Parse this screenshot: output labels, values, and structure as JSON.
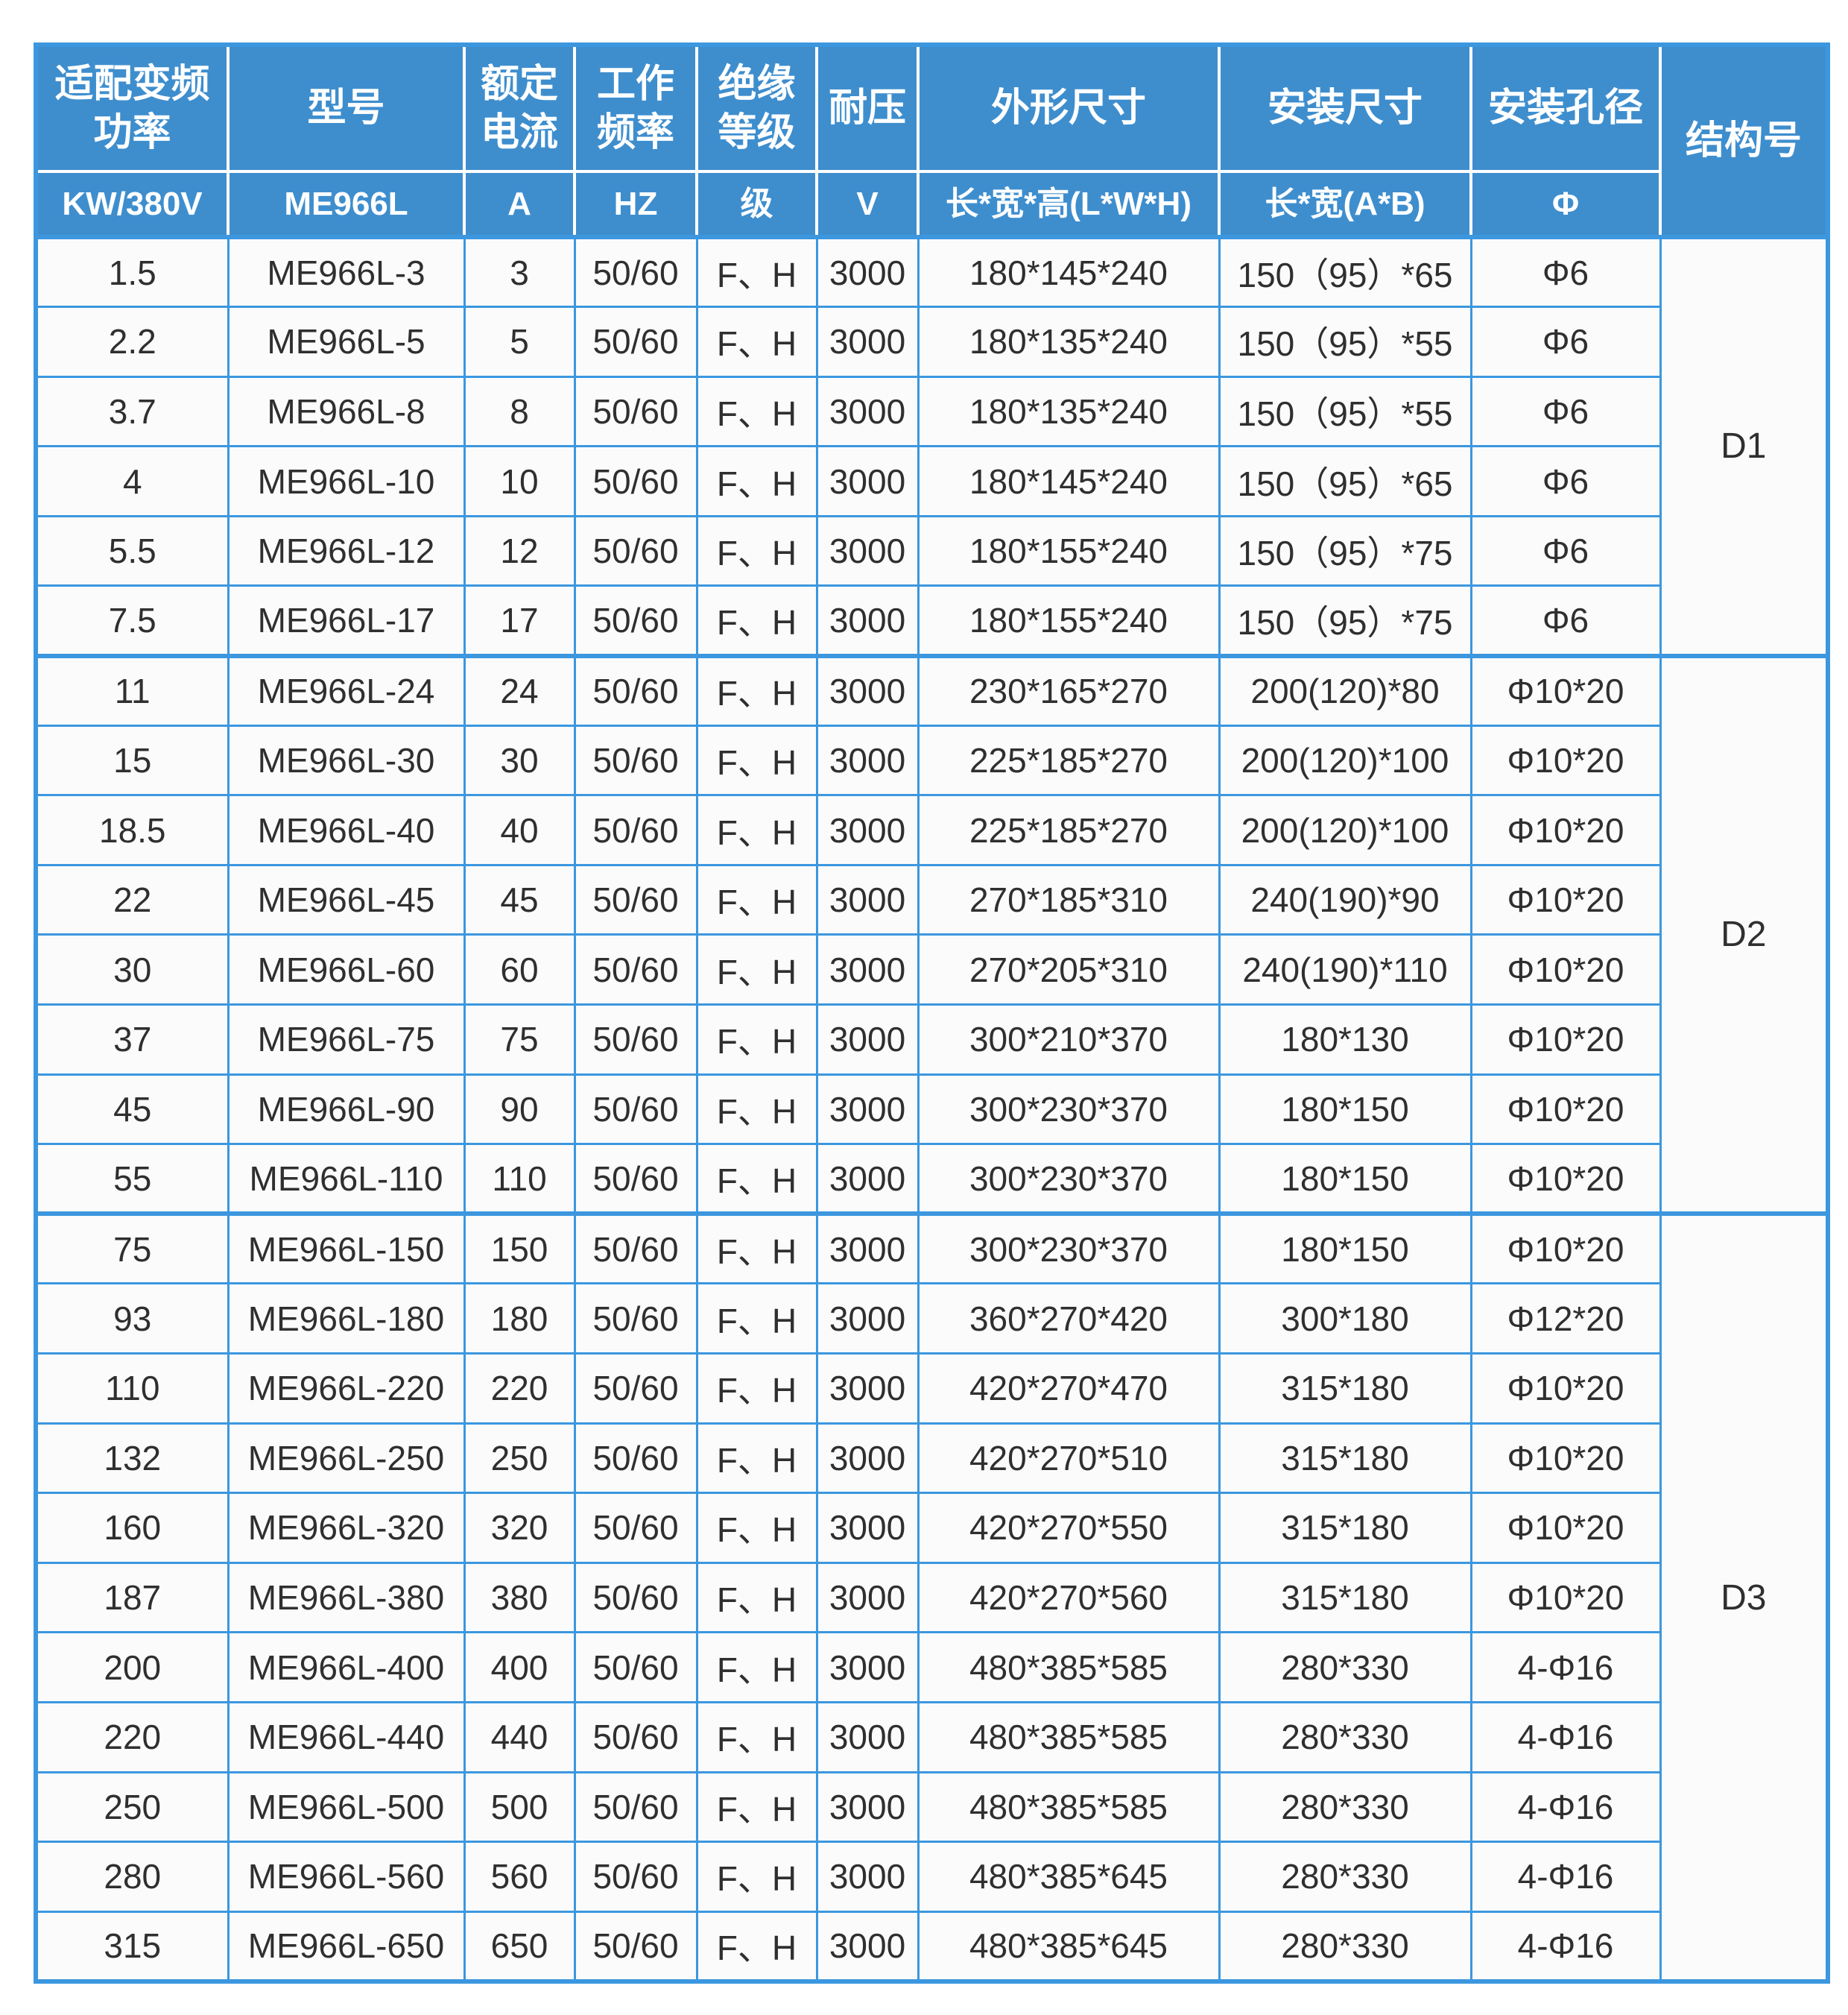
{
  "colors": {
    "header_bg": "#3E8ECE",
    "border_blue": "#3C97DF",
    "cell_bg": "#FBFBFB",
    "cell_text": "#2F2F2F",
    "header_text": "#FFFFFF"
  },
  "table": {
    "columns": [
      {
        "id": "power",
        "label": "适配变频功率",
        "unit": "KW/380V"
      },
      {
        "id": "model",
        "label": "型号",
        "unit": "ME966L"
      },
      {
        "id": "current",
        "label": "额定电流",
        "unit": "A"
      },
      {
        "id": "frequency",
        "label": "工作频率",
        "unit": "HZ"
      },
      {
        "id": "insulation",
        "label": "绝缘等级",
        "unit": "级"
      },
      {
        "id": "voltage",
        "label": "耐压",
        "unit": "V"
      },
      {
        "id": "dimensions",
        "label": "外形尺寸",
        "unit": "长*宽*高(L*W*H)"
      },
      {
        "id": "mounting",
        "label": "安装尺寸",
        "unit": "长*宽(A*B)"
      },
      {
        "id": "hole",
        "label": "安装孔径",
        "unit": "Φ"
      },
      {
        "id": "structure",
        "label": "结构号",
        "unit": ""
      }
    ],
    "groups": [
      {
        "structure": "D1",
        "rows": [
          [
            "1.5",
            "ME966L-3",
            "3",
            "50/60",
            "F、H",
            "3000",
            "180*145*240",
            "150（95）*65",
            "Φ6"
          ],
          [
            "2.2",
            "ME966L-5",
            "5",
            "50/60",
            "F、H",
            "3000",
            "180*135*240",
            "150（95）*55",
            "Φ6"
          ],
          [
            "3.7",
            "ME966L-8",
            "8",
            "50/60",
            "F、H",
            "3000",
            "180*135*240",
            "150（95）*55",
            "Φ6"
          ],
          [
            "4",
            "ME966L-10",
            "10",
            "50/60",
            "F、H",
            "3000",
            "180*145*240",
            "150（95）*65",
            "Φ6"
          ],
          [
            "5.5",
            "ME966L-12",
            "12",
            "50/60",
            "F、H",
            "3000",
            "180*155*240",
            "150（95）*75",
            "Φ6"
          ],
          [
            "7.5",
            "ME966L-17",
            "17",
            "50/60",
            "F、H",
            "3000",
            "180*155*240",
            "150（95）*75",
            "Φ6"
          ]
        ]
      },
      {
        "structure": "D2",
        "rows": [
          [
            "11",
            "ME966L-24",
            "24",
            "50/60",
            "F、H",
            "3000",
            "230*165*270",
            "200(120)*80",
            "Φ10*20"
          ],
          [
            "15",
            "ME966L-30",
            "30",
            "50/60",
            "F、H",
            "3000",
            "225*185*270",
            "200(120)*100",
            "Φ10*20"
          ],
          [
            "18.5",
            "ME966L-40",
            "40",
            "50/60",
            "F、H",
            "3000",
            "225*185*270",
            "200(120)*100",
            "Φ10*20"
          ],
          [
            "22",
            "ME966L-45",
            "45",
            "50/60",
            "F、H",
            "3000",
            "270*185*310",
            "240(190)*90",
            "Φ10*20"
          ],
          [
            "30",
            "ME966L-60",
            "60",
            "50/60",
            "F、H",
            "3000",
            "270*205*310",
            "240(190)*110",
            "Φ10*20"
          ],
          [
            "37",
            "ME966L-75",
            "75",
            "50/60",
            "F、H",
            "3000",
            "300*210*370",
            "180*130",
            "Φ10*20"
          ],
          [
            "45",
            "ME966L-90",
            "90",
            "50/60",
            "F、H",
            "3000",
            "300*230*370",
            "180*150",
            "Φ10*20"
          ],
          [
            "55",
            "ME966L-110",
            "110",
            "50/60",
            "F、H",
            "3000",
            "300*230*370",
            "180*150",
            "Φ10*20"
          ]
        ]
      },
      {
        "structure": "D3",
        "rows": [
          [
            "75",
            "ME966L-150",
            "150",
            "50/60",
            "F、H",
            "3000",
            "300*230*370",
            "180*150",
            "Φ10*20"
          ],
          [
            "93",
            "ME966L-180",
            "180",
            "50/60",
            "F、H",
            "3000",
            "360*270*420",
            "300*180",
            "Φ12*20"
          ],
          [
            "110",
            "ME966L-220",
            "220",
            "50/60",
            "F、H",
            "3000",
            "420*270*470",
            "315*180",
            "Φ10*20"
          ],
          [
            "132",
            "ME966L-250",
            "250",
            "50/60",
            "F、H",
            "3000",
            "420*270*510",
            "315*180",
            "Φ10*20"
          ],
          [
            "160",
            "ME966L-320",
            "320",
            "50/60",
            "F、H",
            "3000",
            "420*270*550",
            "315*180",
            "Φ10*20"
          ],
          [
            "187",
            "ME966L-380",
            "380",
            "50/60",
            "F、H",
            "3000",
            "420*270*560",
            "315*180",
            "Φ10*20"
          ],
          [
            "200",
            "ME966L-400",
            "400",
            "50/60",
            "F、H",
            "3000",
            "480*385*585",
            "280*330",
            "4-Φ16"
          ],
          [
            "220",
            "ME966L-440",
            "440",
            "50/60",
            "F、H",
            "3000",
            "480*385*585",
            "280*330",
            "4-Φ16"
          ],
          [
            "250",
            "ME966L-500",
            "500",
            "50/60",
            "F、H",
            "3000",
            "480*385*585",
            "280*330",
            "4-Φ16"
          ],
          [
            "280",
            "ME966L-560",
            "560",
            "50/60",
            "F、H",
            "3000",
            "480*385*645",
            "280*330",
            "4-Φ16"
          ],
          [
            "315",
            "ME966L-650",
            "650",
            "50/60",
            "F、H",
            "3000",
            "480*385*645",
            "280*330",
            "4-Φ16"
          ]
        ]
      }
    ]
  }
}
